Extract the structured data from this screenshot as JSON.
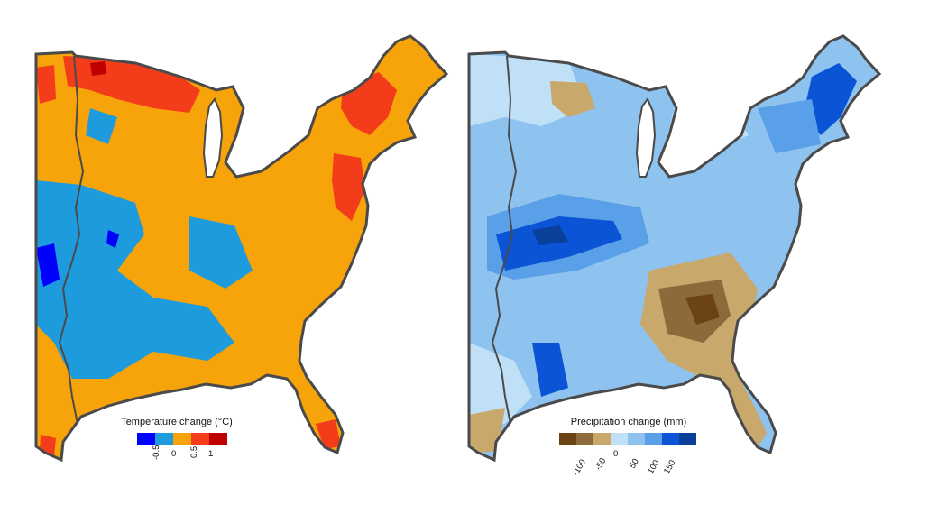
{
  "temperature_map": {
    "legend_title": "Temperature change (°C)",
    "colors": [
      "#0000ff",
      "#1e9bdc",
      "#f7a30a",
      "#f23c1a",
      "#c00000"
    ],
    "tick_labels": [
      "-0.5",
      "0",
      "0.5",
      "1"
    ]
  },
  "precipitation_map": {
    "legend_title": "Precipitation change (mm)",
    "colors": [
      "#6b4314",
      "#8c6a3c",
      "#c9a86c",
      "#bfe0f7",
      "#8ec2ef",
      "#5aa0e8",
      "#0b54d6",
      "#0a3f9a"
    ],
    "tick_labels": [
      "-100",
      "-50",
      "0",
      "50",
      "100",
      "150"
    ]
  }
}
